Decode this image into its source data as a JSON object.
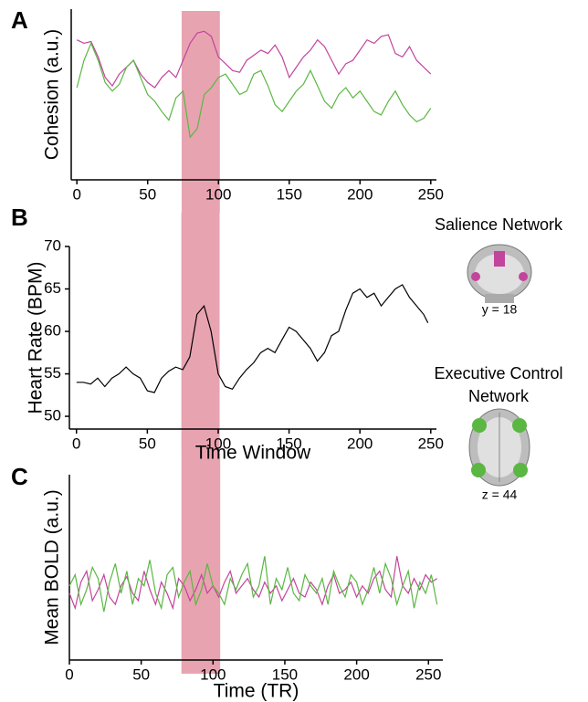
{
  "chart_data": [
    {
      "type": "line",
      "panel_label": "A",
      "y_label": "Cohesion (a.u.)",
      "xlim": [
        -4,
        254
      ],
      "ylim": [
        0,
        1
      ],
      "xticks": [
        0,
        50,
        100,
        150,
        200,
        250
      ],
      "highlight": [
        74,
        101
      ],
      "highlight_color": "#e8a3b1",
      "series": [
        {
          "color": "#c2449c",
          "x": [
            0,
            5,
            10,
            15,
            20,
            25,
            30,
            35,
            40,
            45,
            50,
            55,
            60,
            65,
            70,
            75,
            80,
            85,
            90,
            95,
            100,
            105,
            110,
            115,
            120,
            125,
            130,
            135,
            140,
            145,
            150,
            155,
            160,
            165,
            170,
            175,
            180,
            185,
            190,
            195,
            200,
            205,
            210,
            215,
            220,
            225,
            230,
            235,
            240,
            245,
            250
          ],
          "values": [
            0.82,
            0.8,
            0.81,
            0.72,
            0.6,
            0.55,
            0.62,
            0.66,
            0.7,
            0.62,
            0.57,
            0.54,
            0.6,
            0.64,
            0.6,
            0.7,
            0.8,
            0.86,
            0.87,
            0.84,
            0.72,
            0.68,
            0.64,
            0.63,
            0.7,
            0.73,
            0.76,
            0.74,
            0.79,
            0.72,
            0.6,
            0.66,
            0.72,
            0.76,
            0.82,
            0.78,
            0.7,
            0.62,
            0.68,
            0.7,
            0.76,
            0.82,
            0.8,
            0.84,
            0.85,
            0.74,
            0.72,
            0.78,
            0.7,
            0.66,
            0.62
          ]
        },
        {
          "color": "#5ab741",
          "x": [
            0,
            5,
            10,
            15,
            20,
            25,
            30,
            35,
            40,
            45,
            50,
            55,
            60,
            65,
            70,
            75,
            80,
            85,
            90,
            95,
            100,
            105,
            110,
            115,
            120,
            125,
            130,
            135,
            140,
            145,
            150,
            155,
            160,
            165,
            170,
            175,
            180,
            185,
            190,
            195,
            200,
            205,
            210,
            215,
            220,
            225,
            230,
            235,
            240,
            245,
            250
          ],
          "values": [
            0.54,
            0.7,
            0.8,
            0.7,
            0.57,
            0.52,
            0.56,
            0.66,
            0.7,
            0.6,
            0.5,
            0.46,
            0.4,
            0.35,
            0.48,
            0.52,
            0.25,
            0.3,
            0.5,
            0.54,
            0.6,
            0.62,
            0.56,
            0.5,
            0.52,
            0.62,
            0.64,
            0.55,
            0.44,
            0.4,
            0.46,
            0.52,
            0.56,
            0.64,
            0.55,
            0.46,
            0.42,
            0.5,
            0.54,
            0.48,
            0.52,
            0.46,
            0.4,
            0.38,
            0.46,
            0.52,
            0.44,
            0.38,
            0.34,
            0.36,
            0.42
          ]
        }
      ]
    },
    {
      "type": "line",
      "panel_label": "B",
      "y_label": "Heart Rate (BPM)",
      "x_label": "Time Window",
      "xlim": [
        -5,
        254
      ],
      "ylim": [
        48.5,
        70
      ],
      "xticks": [
        0,
        50,
        100,
        150,
        200,
        250
      ],
      "yticks": [
        50,
        55,
        60,
        65,
        70
      ],
      "highlight": [
        74,
        101
      ],
      "highlight_color": "#e8a3b1",
      "series": [
        {
          "color": "#000000",
          "x": [
            0,
            5,
            10,
            15,
            20,
            25,
            30,
            35,
            40,
            45,
            50,
            55,
            60,
            65,
            70,
            75,
            80,
            85,
            90,
            95,
            100,
            105,
            110,
            115,
            120,
            125,
            130,
            135,
            140,
            145,
            150,
            155,
            160,
            165,
            170,
            175,
            180,
            185,
            190,
            195,
            200,
            205,
            210,
            215,
            220,
            225,
            230,
            235,
            240,
            245,
            248
          ],
          "values": [
            54,
            54,
            53.8,
            54.5,
            53.5,
            54.5,
            55,
            55.8,
            55,
            54.5,
            53,
            52.8,
            54.5,
            55.3,
            55.8,
            55.5,
            57,
            62,
            63,
            60,
            55,
            53.5,
            53.2,
            54.5,
            55.5,
            56.3,
            57.5,
            58,
            57.5,
            59,
            60.5,
            60,
            59,
            58,
            56.5,
            57.5,
            59.5,
            60,
            62.5,
            64.5,
            65,
            64,
            64.5,
            63,
            64,
            65,
            65.5,
            64,
            63,
            62,
            61
          ]
        }
      ]
    },
    {
      "type": "line",
      "panel_label": "C",
      "y_label": "Mean BOLD (a.u.)",
      "x_label": "Time (TR)",
      "xlim": [
        0,
        260
      ],
      "ylim": [
        0,
        1
      ],
      "xticks": [
        0,
        50,
        100,
        150,
        200,
        250
      ],
      "highlight": [
        78,
        105
      ],
      "highlight_color": "#e8a3b1",
      "series": [
        {
          "color": "#c2449c",
          "x": [
            0,
            4,
            8,
            12,
            16,
            20,
            24,
            28,
            32,
            36,
            40,
            44,
            48,
            52,
            56,
            60,
            64,
            68,
            72,
            76,
            80,
            84,
            88,
            92,
            96,
            100,
            104,
            108,
            112,
            116,
            120,
            124,
            128,
            132,
            136,
            140,
            144,
            148,
            152,
            156,
            160,
            164,
            168,
            172,
            176,
            180,
            184,
            188,
            192,
            196,
            200,
            204,
            208,
            212,
            216,
            220,
            224,
            228,
            232,
            236,
            240,
            244,
            248,
            252,
            256
          ],
          "values": [
            0.36,
            0.28,
            0.42,
            0.48,
            0.32,
            0.38,
            0.46,
            0.34,
            0.3,
            0.4,
            0.45,
            0.36,
            0.32,
            0.48,
            0.38,
            0.3,
            0.42,
            0.36,
            0.28,
            0.44,
            0.4,
            0.32,
            0.38,
            0.46,
            0.36,
            0.4,
            0.34,
            0.42,
            0.48,
            0.36,
            0.4,
            0.44,
            0.38,
            0.34,
            0.42,
            0.36,
            0.4,
            0.32,
            0.38,
            0.44,
            0.36,
            0.34,
            0.42,
            0.38,
            0.3,
            0.4,
            0.46,
            0.36,
            0.38,
            0.42,
            0.34,
            0.4,
            0.36,
            0.44,
            0.48,
            0.38,
            0.34,
            0.56,
            0.4,
            0.36,
            0.44,
            0.38,
            0.46,
            0.42,
            0.44
          ]
        },
        {
          "color": "#5ab741",
          "x": [
            0,
            4,
            8,
            12,
            16,
            20,
            24,
            28,
            32,
            36,
            40,
            44,
            48,
            52,
            56,
            60,
            64,
            68,
            72,
            76,
            80,
            84,
            88,
            92,
            96,
            100,
            104,
            108,
            112,
            116,
            120,
            124,
            128,
            132,
            136,
            140,
            144,
            148,
            152,
            156,
            160,
            164,
            168,
            172,
            176,
            180,
            184,
            188,
            192,
            196,
            200,
            204,
            208,
            212,
            216,
            220,
            224,
            228,
            232,
            236,
            240,
            244,
            248,
            252,
            256
          ],
          "values": [
            0.4,
            0.46,
            0.3,
            0.38,
            0.5,
            0.44,
            0.26,
            0.42,
            0.52,
            0.36,
            0.48,
            0.3,
            0.44,
            0.4,
            0.54,
            0.36,
            0.28,
            0.46,
            0.5,
            0.34,
            0.42,
            0.48,
            0.3,
            0.38,
            0.52,
            0.4,
            0.36,
            0.3,
            0.44,
            0.38,
            0.46,
            0.52,
            0.34,
            0.4,
            0.56,
            0.3,
            0.44,
            0.38,
            0.5,
            0.36,
            0.32,
            0.46,
            0.4,
            0.36,
            0.44,
            0.3,
            0.48,
            0.4,
            0.34,
            0.46,
            0.42,
            0.3,
            0.38,
            0.5,
            0.36,
            0.52,
            0.44,
            0.3,
            0.4,
            0.48,
            0.28,
            0.42,
            0.36,
            0.46,
            0.3
          ]
        }
      ]
    }
  ],
  "brains": {
    "salience": {
      "title": "Salience Network",
      "coord": "y = 18",
      "color": "#c2449c"
    },
    "executive": {
      "title_lines": [
        "Executive Control",
        "Network"
      ],
      "coord": "z = 44",
      "color": "#5ab741"
    }
  }
}
